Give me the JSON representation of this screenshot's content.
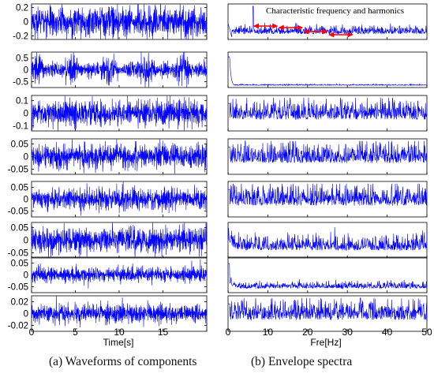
{
  "chart_data": {
    "type": "line",
    "left_panel": {
      "caption": "(a) Waveforms of components",
      "xlabel": "Time[s]",
      "xlim": [
        0,
        20
      ],
      "xticks": [
        "0",
        "5",
        "10",
        "15"
      ],
      "rows": [
        {
          "yticks": [
            "0.2",
            "0",
            "-0.2"
          ],
          "yvals": [
            0.2,
            0,
            -0.2
          ],
          "ylim": [
            -0.25,
            0.25
          ],
          "amplitude": 0.17,
          "modulation": 0.1
        },
        {
          "yticks": [
            "0.5",
            "0",
            "-0.5"
          ],
          "yvals": [
            0.5,
            0,
            -0.5
          ],
          "ylim": [
            -0.75,
            0.75
          ],
          "amplitude": 0.35,
          "modulation": 0.45
        },
        {
          "yticks": [
            "0.1",
            "0",
            "-0.1"
          ],
          "yvals": [
            0.1,
            0,
            -0.1
          ],
          "ylim": [
            -0.14,
            0.14
          ],
          "amplitude": 0.08,
          "modulation": 0.05
        },
        {
          "yticks": [
            "0.05",
            "0",
            "-0.05"
          ],
          "yvals": [
            0.05,
            0,
            -0.05
          ],
          "ylim": [
            -0.07,
            0.07
          ],
          "amplitude": 0.038,
          "modulation": 0.05
        },
        {
          "yticks": [
            "0.05",
            "0",
            "-0.05"
          ],
          "yvals": [
            0.05,
            0,
            -0.05
          ],
          "ylim": [
            -0.075,
            0.075
          ],
          "amplitude": 0.035,
          "modulation": 0.05
        },
        {
          "yticks": [
            "0.05",
            "0",
            "-0.05"
          ],
          "yvals": [
            0.05,
            0,
            -0.05
          ],
          "ylim": [
            -0.07,
            0.07
          ],
          "amplitude": 0.04,
          "modulation": 0.05
        },
        {
          "yticks": [
            "0.05",
            "0",
            "-0.05"
          ],
          "yvals": [
            0.05,
            0,
            -0.05
          ],
          "ylim": [
            -0.075,
            0.075
          ],
          "amplitude": 0.025,
          "modulation": 0.05
        },
        {
          "yticks": [
            "0.02",
            "0",
            "-0.02"
          ],
          "yvals": [
            0.02,
            0,
            -0.02
          ],
          "ylim": [
            -0.03,
            0.03
          ],
          "amplitude": 0.012,
          "modulation": 0.05
        }
      ]
    },
    "right_panel": {
      "caption": "(b) Envelope spectra",
      "xlabel": "Fre[Hz]",
      "xlim": [
        0,
        50
      ],
      "xticks": [
        "0",
        "10",
        "20",
        "30",
        "40",
        "50"
      ],
      "annotation": "Characteristic frequency and harmonics",
      "characteristic_frequency": 6.3,
      "harmonics": [
        6.3,
        12.6,
        18.9,
        25.2,
        31.5
      ],
      "rows": [
        {
          "style": "peak"
        },
        {
          "style": "lowfreq"
        },
        {
          "style": "noise"
        },
        {
          "style": "noise"
        },
        {
          "style": "noise"
        },
        {
          "style": "noise-decay"
        },
        {
          "style": "lowfreq-noise"
        },
        {
          "style": "noise"
        }
      ]
    }
  },
  "colors": {
    "line": "#0000ff",
    "arrow": "#ff0000",
    "axis": "#000000"
  }
}
